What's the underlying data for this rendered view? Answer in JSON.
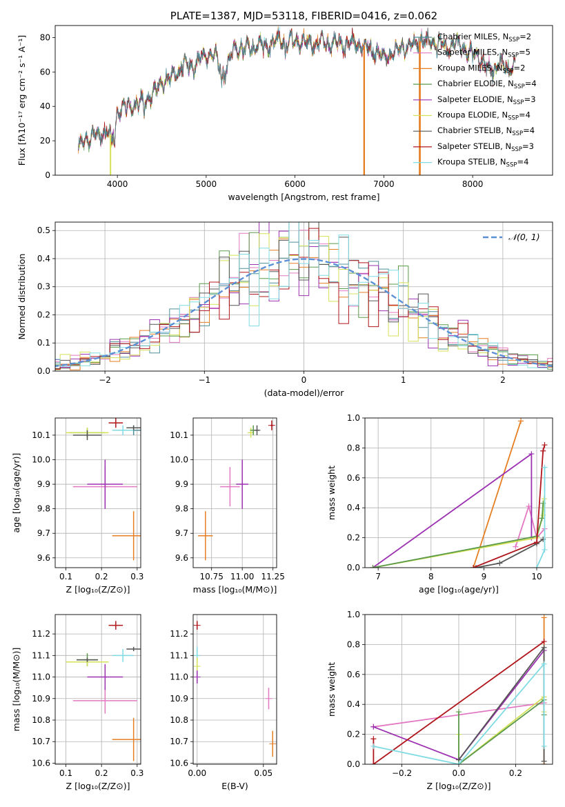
{
  "colors": {
    "chabrier_miles": "#4e8f9a",
    "salpeter_miles": "#e377c2",
    "kroupa_miles": "#e67e22",
    "chabrier_elodie": "#5a9a4a",
    "salpeter_elodie": "#9b30b0",
    "kroupa_elodie": "#d4e157",
    "chabrier_stelib": "#555555",
    "salpeter_stelib": "#b0151b",
    "kroupa_stelib": "#7fdbe3",
    "gaussian": "#5b8fd6"
  },
  "chart_data": [
    {
      "id": "spectrum",
      "type": "line",
      "title": "PLATE=1387, MJD=53118, FIBERID=0416, z=0.062",
      "xlabel": "wavelength [Angstrom, rest frame]",
      "ylabel": "Flux [fλ10⁻¹⁷ erg cm⁻² s⁻¹ A⁻¹]",
      "xlim": [
        3300,
        8900
      ],
      "ylim": [
        0,
        87
      ],
      "xticks": [
        4000,
        5000,
        6000,
        7000,
        8000
      ],
      "yticks": [
        0,
        20,
        40,
        60,
        80
      ],
      "grid": false,
      "legend_position": "top-right",
      "legend": [
        {
          "label": "Chabrier MILES, N",
          "sub": "SSP",
          "suffix": "=2",
          "color_key": "chabrier_miles"
        },
        {
          "label": "Salpeter MILES, N",
          "sub": "SSP",
          "suffix": "=5",
          "color_key": "salpeter_miles"
        },
        {
          "label": "Kroupa MILES, N",
          "sub": "SSP",
          "suffix": "=2",
          "color_key": "kroupa_miles"
        },
        {
          "label": "Chabrier ELODIE, N",
          "sub": "SSP",
          "suffix": "=4",
          "color_key": "chabrier_elodie"
        },
        {
          "label": "Salpeter ELODIE, N",
          "sub": "SSP",
          "suffix": "=3",
          "color_key": "salpeter_elodie"
        },
        {
          "label": "Kroupa ELODIE, N",
          "sub": "SSP",
          "suffix": "=4",
          "color_key": "kroupa_elodie"
        },
        {
          "label": "Chabrier STELIB, N",
          "sub": "SSP",
          "suffix": "=4",
          "color_key": "chabrier_stelib"
        },
        {
          "label": "Salpeter STELIB, N",
          "sub": "SSP",
          "suffix": "=3",
          "color_key": "salpeter_stelib"
        },
        {
          "label": "Kroupa STELIB, N",
          "sub": "SSP",
          "suffix": "=4",
          "color_key": "kroupa_stelib"
        }
      ],
      "continuum": [
        [
          3560,
          12
        ],
        [
          3600,
          19
        ],
        [
          3700,
          23
        ],
        [
          3800,
          24
        ],
        [
          3900,
          25
        ],
        [
          3950,
          22
        ],
        [
          4000,
          37
        ],
        [
          4100,
          40
        ],
        [
          4200,
          40
        ],
        [
          4300,
          43
        ],
        [
          4400,
          47
        ],
        [
          4500,
          55
        ],
        [
          4600,
          57
        ],
        [
          4700,
          62
        ],
        [
          4800,
          64
        ],
        [
          4900,
          66
        ],
        [
          5000,
          70
        ],
        [
          5100,
          70
        ],
        [
          5200,
          58
        ],
        [
          5300,
          73
        ],
        [
          5400,
          73
        ],
        [
          5500,
          74
        ],
        [
          5600,
          76
        ],
        [
          5700,
          76
        ],
        [
          5800,
          77
        ],
        [
          5850,
          80
        ],
        [
          5900,
          78
        ],
        [
          6000,
          78
        ],
        [
          6100,
          77
        ],
        [
          6200,
          76
        ],
        [
          6300,
          77
        ],
        [
          6400,
          76
        ],
        [
          6500,
          77
        ],
        [
          6600,
          76
        ],
        [
          6700,
          76
        ],
        [
          6800,
          75
        ],
        [
          6900,
          72
        ],
        [
          7000,
          69
        ],
        [
          7100,
          70
        ],
        [
          7200,
          75
        ],
        [
          7300,
          74
        ],
        [
          7400,
          78
        ],
        [
          7500,
          78
        ],
        [
          7600,
          78
        ],
        [
          7700,
          73
        ],
        [
          7800,
          78
        ],
        [
          7900,
          73
        ],
        [
          8000,
          71
        ],
        [
          8100,
          68
        ],
        [
          8200,
          60
        ],
        [
          8300,
          65
        ],
        [
          8400,
          62
        ],
        [
          8480,
          64
        ]
      ],
      "absorption": [
        [
          3934,
          8
        ],
        [
          3968,
          10
        ],
        [
          4102,
          4
        ],
        [
          4300,
          7
        ],
        [
          4861,
          5
        ],
        [
          5175,
          9
        ],
        [
          5270,
          4
        ],
        [
          5890,
          12
        ],
        [
          6563,
          5
        ],
        [
          6867,
          6
        ],
        [
          7600,
          6
        ]
      ],
      "dropouts": [
        {
          "color_key": "kroupa_elodie",
          "x": [
            3920,
            3925
          ]
        },
        {
          "color_key": "kroupa_miles",
          "x": [
            6775,
            6782
          ]
        },
        {
          "color_key": "kroupa_miles",
          "x": [
            7400,
            7410
          ]
        }
      ]
    },
    {
      "id": "residuals",
      "type": "histogram",
      "xlabel": "(data-model)/error",
      "ylabel": "Normed distribution",
      "xlim": [
        -2.5,
        2.5
      ],
      "ylim": [
        0,
        0.53
      ],
      "xticks": [
        -2,
        -1,
        0,
        1,
        2
      ],
      "yticks": [
        0.0,
        0.1,
        0.2,
        0.3,
        0.4,
        0.5
      ],
      "grid": true,
      "bin_width": 0.1,
      "legend_position": "top-right",
      "legend": [
        {
          "label": "𝒩(0, 1)",
          "color_key": "gaussian",
          "style": "dashed"
        }
      ]
    },
    {
      "id": "age_vs_Z",
      "type": "errorbar",
      "xlabel": "Z [log₁₀(Z/Z⊙)]",
      "ylabel": "age  [log₁₀(age/yr)]",
      "xlim": [
        0.07,
        0.31
      ],
      "ylim": [
        9.56,
        10.17
      ],
      "xticks": [
        0.1,
        0.2,
        0.3
      ],
      "yticks": [
        9.6,
        9.7,
        9.8,
        9.9,
        10.0,
        10.1
      ],
      "grid": true,
      "points": [
        {
          "color_key": "chabrier_miles",
          "x": 0.29,
          "y": 10.12,
          "xerr": 0.02,
          "yerr": 0.02
        },
        {
          "color_key": "salpeter_miles",
          "x": 0.21,
          "y": 9.89,
          "xerr": 0.09,
          "yerr": 0.08
        },
        {
          "color_key": "kroupa_miles",
          "x": 0.29,
          "y": 9.69,
          "xerr": 0.06,
          "yerr": 0.1
        },
        {
          "color_key": "chabrier_elodie",
          "x": 0.16,
          "y": 10.11,
          "xerr": 0.05,
          "yerr": 0.02
        },
        {
          "color_key": "salpeter_elodie",
          "x": 0.21,
          "y": 9.9,
          "xerr": 0.05,
          "yerr": 0.1
        },
        {
          "color_key": "kroupa_elodie",
          "x": 0.16,
          "y": 10.11,
          "xerr": 0.06,
          "yerr": 0.02
        },
        {
          "color_key": "chabrier_stelib",
          "x": 0.16,
          "y": 10.1,
          "xerr": 0.04,
          "yerr": 0.02
        },
        {
          "color_key": "salpeter_stelib",
          "x": 0.24,
          "y": 10.15,
          "xerr": 0.02,
          "yerr": 0.02
        },
        {
          "color_key": "kroupa_stelib",
          "x": 0.26,
          "y": 10.12,
          "xerr": 0.03,
          "yerr": 0.02
        },
        {
          "color_key": "chabrier_stelib",
          "x": 0.29,
          "y": 10.13,
          "xerr": 0.02,
          "yerr": 0.01
        }
      ]
    },
    {
      "id": "age_vs_mass",
      "type": "errorbar",
      "xlabel": "mass [log₁₀(M/M⊙)]",
      "ylabel": "",
      "xlim": [
        10.6,
        11.28
      ],
      "ylim": [
        9.56,
        10.17
      ],
      "xticks": [
        10.75,
        11.0,
        11.25
      ],
      "yticks": [
        9.6,
        9.7,
        9.8,
        9.9,
        10.0,
        10.1
      ],
      "grid": true,
      "points": [
        {
          "color_key": "kroupa_miles",
          "x": 10.7,
          "y": 9.69,
          "xerr": 0.06,
          "yerr": 0.1
        },
        {
          "color_key": "salpeter_miles",
          "x": 10.9,
          "y": 9.89,
          "xerr": 0.08,
          "yerr": 0.08
        },
        {
          "color_key": "salpeter_elodie",
          "x": 11.0,
          "y": 9.9,
          "xerr": 0.05,
          "yerr": 0.1
        },
        {
          "color_key": "kroupa_elodie",
          "x": 11.07,
          "y": 10.11,
          "xerr": 0.02,
          "yerr": 0.02
        },
        {
          "color_key": "chabrier_elodie",
          "x": 11.09,
          "y": 10.12,
          "xerr": 0.02,
          "yerr": 0.02
        },
        {
          "color_key": "chabrier_stelib",
          "x": 11.12,
          "y": 10.12,
          "xerr": 0.02,
          "yerr": 0.02
        },
        {
          "color_key": "salpeter_stelib",
          "x": 11.24,
          "y": 10.14,
          "xerr": 0.01,
          "yerr": 0.02
        }
      ]
    },
    {
      "id": "weight_vs_age",
      "type": "line",
      "xlabel": "age  [log₁₀(age/yr)]",
      "ylabel": "mass weight",
      "xlim": [
        6.75,
        10.3
      ],
      "ylim": [
        0,
        1
      ],
      "xticks": [
        7,
        8,
        9,
        10
      ],
      "yticks": [
        0.0,
        0.2,
        0.4,
        0.6,
        0.8,
        1.0
      ],
      "grid": true,
      "series": [
        {
          "color_key": "kroupa_miles",
          "x": [
            8.8,
            9.7
          ],
          "y": [
            0.0,
            0.98
          ]
        },
        {
          "color_key": "salpeter_miles",
          "x": [
            9.6,
            9.85,
            10.0,
            10.15
          ],
          "y": [
            0.14,
            0.41,
            0.2,
            0.26
          ]
        },
        {
          "color_key": "salpeter_elodie",
          "x": [
            6.9,
            9.9,
            9.9
          ],
          "y": [
            0.0,
            0.76,
            0.2
          ]
        },
        {
          "color_key": "kroupa_elodie",
          "x": [
            6.9,
            10.0,
            10.12,
            10.14
          ],
          "y": [
            0.0,
            0.2,
            0.35,
            0.46
          ]
        },
        {
          "color_key": "chabrier_elodie",
          "x": [
            6.9,
            10.0,
            10.1,
            10.12
          ],
          "y": [
            0.0,
            0.21,
            0.33,
            0.43
          ]
        },
        {
          "color_key": "chabrier_stelib",
          "x": [
            8.85,
            9.3,
            10.0,
            10.12
          ],
          "y": [
            0.0,
            0.03,
            0.16,
            0.19
          ]
        },
        {
          "color_key": "salpeter_stelib",
          "x": [
            8.8,
            10.0,
            10.12,
            10.15
          ],
          "y": [
            0.0,
            0.17,
            0.78,
            0.82
          ]
        },
        {
          "color_key": "kroupa_stelib",
          "x": [
            10.0,
            10.15,
            10.15
          ],
          "y": [
            0.0,
            0.12,
            0.67
          ]
        }
      ]
    },
    {
      "id": "mass_vs_Z",
      "type": "errorbar",
      "xlabel": "Z [log₁₀(Z/Z⊙)]",
      "ylabel": "mass [log₁₀(M/M⊙)]",
      "xlim": [
        0.07,
        0.31
      ],
      "ylim": [
        10.595,
        11.29
      ],
      "xticks": [
        0.1,
        0.2,
        0.3
      ],
      "yticks": [
        10.6,
        10.7,
        10.8,
        10.9,
        11.0,
        11.1,
        11.2
      ],
      "grid": true,
      "points": [
        {
          "color_key": "kroupa_miles",
          "x": 0.29,
          "y": 10.71,
          "xerr": 0.06,
          "yerr": 0.1
        },
        {
          "color_key": "salpeter_miles",
          "x": 0.21,
          "y": 10.89,
          "xerr": 0.09,
          "yerr": 0.06
        },
        {
          "color_key": "salpeter_elodie",
          "x": 0.21,
          "y": 11.0,
          "xerr": 0.05,
          "yerr": 0.06
        },
        {
          "color_key": "chabrier_elodie",
          "x": 0.16,
          "y": 11.08,
          "xerr": 0.03,
          "yerr": 0.03
        },
        {
          "color_key": "kroupa_elodie",
          "x": 0.16,
          "y": 11.07,
          "xerr": 0.06,
          "yerr": 0.02
        },
        {
          "color_key": "chabrier_stelib",
          "x": 0.16,
          "y": 11.08,
          "xerr": 0.03,
          "yerr": 0.01
        },
        {
          "color_key": "salpeter_stelib",
          "x": 0.24,
          "y": 11.24,
          "xerr": 0.02,
          "yerr": 0.02
        },
        {
          "color_key": "kroupa_stelib",
          "x": 0.26,
          "y": 11.1,
          "xerr": 0.03,
          "yerr": 0.03
        },
        {
          "color_key": "chabrier_stelib",
          "x": 0.29,
          "y": 11.13,
          "xerr": 0.02,
          "yerr": 0.01
        }
      ]
    },
    {
      "id": "mass_vs_ebv",
      "type": "errorbar",
      "xlabel": "E(B-V)",
      "ylabel": "",
      "xlim": [
        -0.003,
        0.06
      ],
      "ylim": [
        10.595,
        11.29
      ],
      "xticks": [
        0.0,
        0.05
      ],
      "yticks": [
        10.6,
        10.7,
        10.8,
        10.9,
        11.0,
        11.1,
        11.2
      ],
      "grid": true,
      "points": [
        {
          "color_key": "salpeter_stelib",
          "x": 0.0,
          "y": 11.24,
          "xerr": 0,
          "yerr": 0.02
        },
        {
          "color_key": "kroupa_stelib",
          "x": 0.0,
          "y": 11.1,
          "xerr": 0,
          "yerr": 0.04
        },
        {
          "color_key": "kroupa_elodie",
          "x": 0.0,
          "y": 11.05,
          "xerr": 0,
          "yerr": 0.04
        },
        {
          "color_key": "salpeter_elodie",
          "x": 0.0,
          "y": 11.0,
          "xerr": 0,
          "yerr": 0.03
        },
        {
          "color_key": "salpeter_miles",
          "x": 0.054,
          "y": 10.9,
          "xerr": 0,
          "yerr": 0.05
        },
        {
          "color_key": "kroupa_miles",
          "x": 0.057,
          "y": 10.69,
          "xerr": 0,
          "yerr": 0.06
        }
      ]
    },
    {
      "id": "weight_vs_Z",
      "type": "line",
      "xlabel": "Z [log₁₀(Z/Z⊙)]",
      "ylabel": "mass weight",
      "xlim": [
        -0.33,
        0.33
      ],
      "ylim": [
        0,
        1
      ],
      "xticks": [
        -0.2,
        0.0,
        0.2
      ],
      "yticks": [
        0.0,
        0.2,
        0.4,
        0.6,
        0.8,
        1.0
      ],
      "grid": true,
      "series": [
        {
          "color_key": "kroupa_miles",
          "x": [
            0.3,
            0.3
          ],
          "y": [
            0.0,
            0.98
          ]
        },
        {
          "color_key": "salpeter_miles",
          "x": [
            -0.3,
            0.3
          ],
          "y": [
            0.25,
            0.41
          ]
        },
        {
          "color_key": "salpeter_elodie",
          "x": [
            -0.3,
            0.0,
            0.3
          ],
          "y": [
            0.25,
            0.03,
            0.76
          ]
        },
        {
          "color_key": "kroupa_elodie",
          "x": [
            0.0,
            0.0,
            0.3,
            0.3
          ],
          "y": [
            0.2,
            0.0,
            0.45,
            0.35
          ]
        },
        {
          "color_key": "chabrier_elodie",
          "x": [
            0.0,
            0.0,
            0.3,
            0.3
          ],
          "y": [
            0.35,
            0.0,
            0.43,
            0.33
          ]
        },
        {
          "color_key": "chabrier_stelib",
          "x": [
            0.0,
            0.3,
            0.3
          ],
          "y": [
            0.03,
            0.78,
            0.02
          ]
        },
        {
          "color_key": "salpeter_stelib",
          "x": [
            -0.3,
            -0.3,
            0.3
          ],
          "y": [
            0.17,
            0.0,
            0.82
          ]
        },
        {
          "color_key": "kroupa_stelib",
          "x": [
            -0.3,
            0.0,
            0.3,
            0.3
          ],
          "y": [
            0.12,
            0.0,
            0.67,
            0.12
          ]
        }
      ]
    }
  ]
}
